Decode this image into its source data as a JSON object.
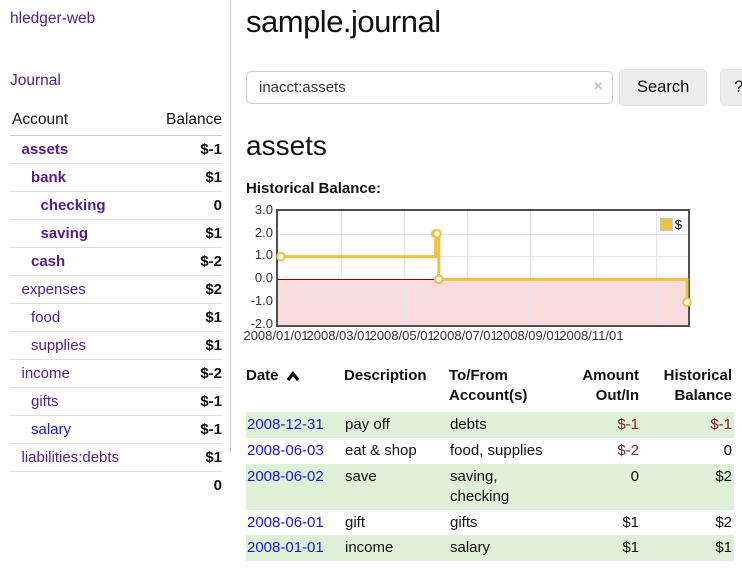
{
  "app": {
    "brand": "hledger-web",
    "nav_journal": "Journal"
  },
  "colors": {
    "link_purple": "#551a8b",
    "link_blue": "#1717d6",
    "negative_red": "#8b202c",
    "negative_muted": "#c1767f",
    "row_green": "#dff0d8",
    "chart_gold": "#edc240",
    "chart_negative_region": "#fbdcdc",
    "chart_zero_line": "#8b0000",
    "button_gray": "#ececec"
  },
  "sidebar": {
    "accounts_header": {
      "account": "Account",
      "balance": "Balance"
    },
    "accounts": [
      {
        "name": "assets",
        "indent": 1,
        "bold": true,
        "balance": "$-1",
        "negative": true,
        "visited": true
      },
      {
        "name": "bank",
        "indent": 2,
        "bold": true,
        "balance": "$1",
        "negative": false,
        "visited": true
      },
      {
        "name": "checking",
        "indent": 3,
        "bold": true,
        "balance": "0",
        "negative": false,
        "visited": true
      },
      {
        "name": "saving",
        "indent": 3,
        "bold": true,
        "balance": "$1",
        "negative": false,
        "visited": true
      },
      {
        "name": "cash",
        "indent": 2,
        "bold": true,
        "balance": "$-2",
        "negative": true,
        "visited": true
      },
      {
        "name": "expenses",
        "indent": 1,
        "bold": false,
        "balance": "$2",
        "negative": false,
        "visited": true
      },
      {
        "name": "food",
        "indent": 2,
        "bold": false,
        "balance": "$1",
        "negative": false,
        "visited": true
      },
      {
        "name": "supplies",
        "indent": 2,
        "bold": false,
        "balance": "$1",
        "negative": false,
        "visited": true
      },
      {
        "name": "income",
        "indent": 1,
        "bold": false,
        "balance": "$-2",
        "negative": true,
        "muted": true,
        "visited": true
      },
      {
        "name": "gifts",
        "indent": 2,
        "bold": false,
        "balance": "$-1",
        "negative": true,
        "muted": true,
        "visited": true
      },
      {
        "name": "salary",
        "indent": 2,
        "bold": false,
        "balance": "$-1",
        "negative": true,
        "muted": true,
        "visited": false
      },
      {
        "name": "liabilities:debts",
        "indent": 1,
        "bold": false,
        "balance": "$1",
        "negative": false,
        "visited": true
      }
    ],
    "total": "0"
  },
  "header": {
    "title": "sample.journal"
  },
  "search": {
    "query": "inacct:assets",
    "clear_icon": "×",
    "button_label": "Search",
    "help_label": "?"
  },
  "account_page": {
    "heading": "assets",
    "chart_label": "Historical Balance:"
  },
  "chart_data": {
    "type": "line",
    "step": true,
    "title": "Historical Balance",
    "series": [
      {
        "name": "$",
        "color": "#edc240",
        "points": [
          {
            "date": "2008/01/01",
            "x_months": 0,
            "y": 1
          },
          {
            "date": "2008/06/01",
            "x_months": 5.0,
            "y": 2
          },
          {
            "date": "2008/06/02",
            "x_months": 5.04,
            "y": 2
          },
          {
            "date": "2008/06/03",
            "x_months": 5.1,
            "y": 0
          },
          {
            "date": "2008/12/31",
            "x_months": 12.97,
            "y": -1
          }
        ]
      }
    ],
    "ylim": [
      -2,
      3
    ],
    "x_months_lim": [
      0,
      13
    ],
    "yticks": [
      {
        "label": "3.0",
        "v": 3
      },
      {
        "label": "2.0",
        "v": 2
      },
      {
        "label": "1.0",
        "v": 1
      },
      {
        "label": "0.0",
        "v": 0
      },
      {
        "label": "-1.0",
        "v": -1
      },
      {
        "label": "-2.0",
        "v": -2
      }
    ],
    "xticks": [
      {
        "label": "2008/01/01",
        "x_months": 0
      },
      {
        "label": "2008/03/01",
        "x_months": 2
      },
      {
        "label": "2008/05/01",
        "x_months": 4
      },
      {
        "label": "2008/07/01",
        "x_months": 6
      },
      {
        "label": "2008/09/01",
        "x_months": 8
      },
      {
        "label": "2008/11/01",
        "x_months": 10
      }
    ],
    "grid_v_months": [
      2,
      4,
      6,
      8,
      10,
      12
    ],
    "grid_h_values": [
      2,
      1,
      -1
    ],
    "legend": {
      "label": "$",
      "position": "top-right"
    },
    "negative_region": true
  },
  "register": {
    "columns": [
      "Date",
      "Description",
      "To/From Account(s)",
      "Amount Out/In",
      "Historical Balance"
    ],
    "sort_icon": "chevron-up",
    "rows": [
      {
        "date": "2008-12-31",
        "description": "pay off",
        "accounts": "debts",
        "amount": "$-1",
        "amount_negative": true,
        "balance": "$-1",
        "balance_negative": true
      },
      {
        "date": "2008-06-03",
        "description": "eat & shop",
        "accounts": "food, supplies",
        "amount": "$-2",
        "amount_negative": true,
        "balance": "0",
        "balance_negative": false
      },
      {
        "date": "2008-06-02",
        "description": "save",
        "accounts": "saving, checking",
        "amount": "0",
        "amount_negative": false,
        "balance": "$2",
        "balance_negative": false
      },
      {
        "date": "2008-06-01",
        "description": "gift",
        "accounts": "gifts",
        "amount": "$1",
        "amount_negative": false,
        "balance": "$2",
        "balance_negative": false
      },
      {
        "date": "2008-01-01",
        "description": "income",
        "accounts": "salary",
        "amount": "$1",
        "amount_negative": false,
        "balance": "$1",
        "balance_negative": false
      }
    ]
  }
}
